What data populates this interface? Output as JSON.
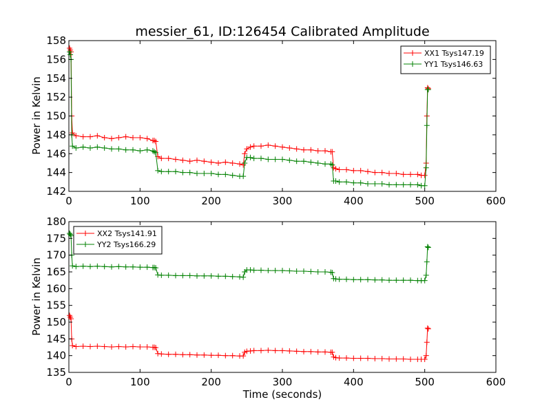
{
  "chart_data": [
    {
      "type": "line",
      "title": "messier_61, ID:126454 Calibrated Amplitude",
      "xlabel": "",
      "ylabel": "Power in Kelvin",
      "xlim": [
        0,
        600
      ],
      "ylim": [
        142,
        158
      ],
      "xticks": [
        "0",
        "100",
        "200",
        "300",
        "400",
        "500",
        "600"
      ],
      "yticks": [
        "142",
        "144",
        "146",
        "148",
        "150",
        "152",
        "154",
        "156",
        "158"
      ],
      "legend_position": "top-right",
      "series": [
        {
          "name": "XX1 Tsys147.19",
          "color": "#ff0000",
          "marker": "+",
          "x": [
            1,
            2,
            3,
            4,
            5,
            10,
            20,
            30,
            40,
            50,
            60,
            70,
            80,
            90,
            100,
            110,
            118,
            120,
            122,
            125,
            130,
            140,
            150,
            160,
            170,
            180,
            190,
            200,
            210,
            220,
            230,
            240,
            245,
            247,
            250,
            255,
            260,
            270,
            280,
            290,
            300,
            310,
            320,
            330,
            340,
            350,
            360,
            368,
            370,
            372,
            375,
            380,
            390,
            400,
            410,
            420,
            430,
            440,
            450,
            460,
            470,
            480,
            490,
            495,
            500,
            502,
            503,
            504,
            505
          ],
          "y": [
            157.2,
            157.0,
            156.8,
            150.0,
            148.2,
            147.9,
            147.8,
            147.8,
            147.9,
            147.7,
            147.6,
            147.7,
            147.8,
            147.7,
            147.7,
            147.6,
            147.4,
            147.4,
            147.3,
            145.7,
            145.5,
            145.5,
            145.4,
            145.3,
            145.2,
            145.3,
            145.2,
            145.1,
            145.0,
            145.1,
            145.0,
            144.9,
            144.8,
            146.0,
            146.5,
            146.7,
            146.8,
            146.8,
            146.9,
            146.8,
            146.7,
            146.6,
            146.5,
            146.4,
            146.4,
            146.3,
            146.3,
            146.2,
            146.2,
            144.5,
            144.4,
            144.3,
            144.3,
            144.2,
            144.2,
            144.1,
            144.0,
            144.0,
            143.9,
            143.9,
            143.8,
            143.8,
            143.8,
            143.7,
            143.7,
            145.0,
            150.0,
            153.0,
            152.9
          ]
        },
        {
          "name": "YY1 Tsys146.63",
          "color": "#008000",
          "marker": "+",
          "x": [
            1,
            2,
            3,
            4,
            5,
            10,
            20,
            30,
            40,
            50,
            60,
            70,
            80,
            90,
            100,
            110,
            118,
            120,
            122,
            125,
            130,
            140,
            150,
            160,
            170,
            180,
            190,
            200,
            210,
            220,
            230,
            240,
            245,
            247,
            250,
            255,
            260,
            270,
            280,
            290,
            300,
            310,
            320,
            330,
            340,
            350,
            360,
            368,
            370,
            372,
            375,
            380,
            390,
            400,
            410,
            420,
            430,
            440,
            450,
            460,
            470,
            480,
            490,
            495,
            500,
            502,
            503,
            504,
            505
          ],
          "y": [
            156.8,
            156.5,
            156.0,
            148.0,
            146.8,
            146.6,
            146.7,
            146.6,
            146.7,
            146.6,
            146.5,
            146.5,
            146.4,
            146.4,
            146.3,
            146.4,
            146.3,
            146.2,
            146.1,
            144.2,
            144.1,
            144.1,
            144.1,
            144.0,
            144.0,
            143.9,
            143.9,
            143.9,
            143.8,
            143.8,
            143.7,
            143.6,
            143.6,
            145.0,
            145.6,
            145.6,
            145.5,
            145.5,
            145.4,
            145.4,
            145.4,
            145.3,
            145.2,
            145.2,
            145.1,
            145.0,
            144.9,
            144.9,
            144.8,
            143.1,
            143.1,
            143.0,
            143.0,
            142.9,
            142.9,
            142.8,
            142.8,
            142.8,
            142.7,
            142.7,
            142.7,
            142.7,
            142.7,
            142.6,
            142.6,
            144.5,
            149.0,
            152.8,
            152.8
          ]
        }
      ]
    },
    {
      "type": "line",
      "title": "",
      "xlabel": "Time (seconds)",
      "ylabel": "Power in Kelvin",
      "xlim": [
        0,
        600
      ],
      "ylim": [
        135,
        180
      ],
      "xticks": [
        "0",
        "100",
        "200",
        "300",
        "400",
        "500",
        "600"
      ],
      "yticks": [
        "135",
        "140",
        "145",
        "150",
        "155",
        "160",
        "165",
        "170",
        "175",
        "180"
      ],
      "legend_position": "top-left",
      "series": [
        {
          "name": "XX2 Tsys141.91",
          "color": "#ff0000",
          "marker": "+",
          "x": [
            1,
            2,
            3,
            4,
            5,
            10,
            20,
            30,
            40,
            50,
            60,
            70,
            80,
            90,
            100,
            110,
            118,
            120,
            122,
            125,
            130,
            140,
            150,
            160,
            170,
            180,
            190,
            200,
            210,
            220,
            230,
            240,
            245,
            247,
            250,
            255,
            260,
            270,
            280,
            290,
            300,
            310,
            320,
            330,
            340,
            350,
            360,
            368,
            370,
            372,
            375,
            380,
            390,
            400,
            410,
            420,
            430,
            440,
            450,
            460,
            470,
            480,
            490,
            495,
            500,
            502,
            503,
            504,
            505
          ],
          "y": [
            152.0,
            151.5,
            151.0,
            145.0,
            143.0,
            142.7,
            142.8,
            142.7,
            142.8,
            142.7,
            142.6,
            142.7,
            142.6,
            142.7,
            142.6,
            142.6,
            142.5,
            142.5,
            142.4,
            140.6,
            140.5,
            140.4,
            140.4,
            140.3,
            140.3,
            140.2,
            140.2,
            140.1,
            140.1,
            140.0,
            140.0,
            139.9,
            139.9,
            141.0,
            141.3,
            141.4,
            141.5,
            141.5,
            141.6,
            141.5,
            141.5,
            141.4,
            141.3,
            141.2,
            141.2,
            141.1,
            141.1,
            141.0,
            141.0,
            139.6,
            139.4,
            139.3,
            139.3,
            139.2,
            139.2,
            139.2,
            139.1,
            139.1,
            139.0,
            139.0,
            139.0,
            138.9,
            138.9,
            138.9,
            138.9,
            140.0,
            144.0,
            148.2,
            148.0
          ]
        },
        {
          "name": "YY2 Tsys166.29",
          "color": "#008000",
          "marker": "+",
          "x": [
            1,
            2,
            3,
            4,
            5,
            10,
            20,
            30,
            40,
            50,
            60,
            70,
            80,
            90,
            100,
            110,
            118,
            120,
            122,
            125,
            130,
            140,
            150,
            160,
            170,
            180,
            190,
            200,
            210,
            220,
            230,
            240,
            245,
            247,
            250,
            255,
            260,
            270,
            280,
            290,
            300,
            310,
            320,
            330,
            340,
            350,
            360,
            368,
            370,
            372,
            375,
            380,
            390,
            400,
            410,
            420,
            430,
            440,
            450,
            460,
            470,
            480,
            490,
            495,
            500,
            502,
            503,
            504,
            505
          ],
          "y": [
            176.5,
            176.2,
            175.8,
            170.0,
            166.8,
            166.6,
            166.7,
            166.6,
            166.7,
            166.6,
            166.5,
            166.6,
            166.5,
            166.5,
            166.4,
            166.4,
            166.3,
            166.3,
            166.2,
            164.1,
            164.0,
            164.0,
            163.9,
            163.9,
            163.9,
            163.8,
            163.8,
            163.8,
            163.7,
            163.7,
            163.6,
            163.5,
            163.4,
            165.0,
            165.6,
            165.6,
            165.5,
            165.5,
            165.4,
            165.4,
            165.4,
            165.3,
            165.2,
            165.2,
            165.1,
            165.0,
            165.0,
            164.9,
            164.8,
            163.0,
            162.9,
            162.8,
            162.8,
            162.7,
            162.7,
            162.7,
            162.6,
            162.6,
            162.5,
            162.5,
            162.5,
            162.5,
            162.4,
            162.4,
            162.4,
            164.0,
            168.0,
            172.5,
            172.3
          ]
        }
      ]
    }
  ]
}
